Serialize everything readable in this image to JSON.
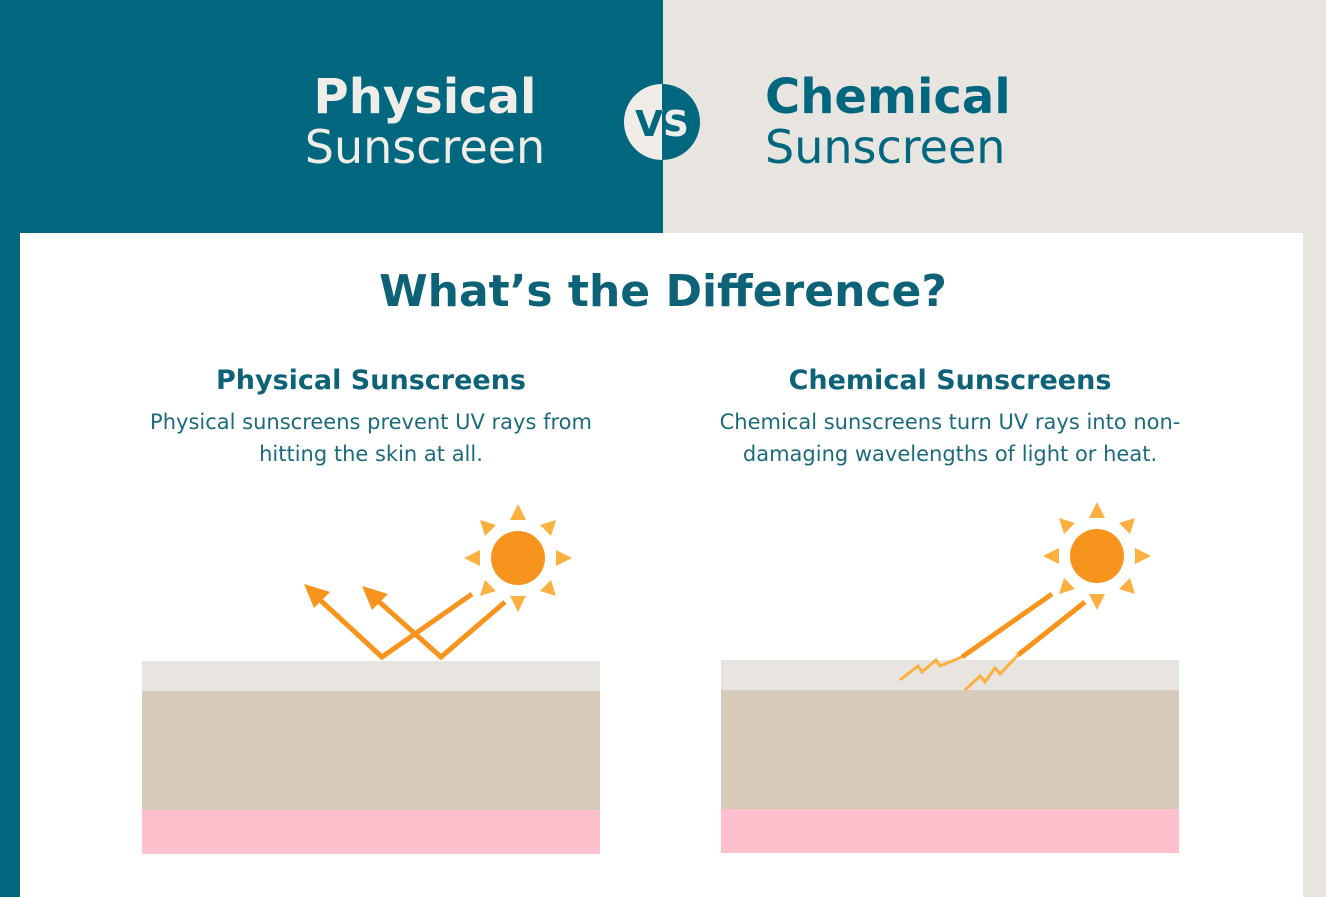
{
  "header": {
    "left": {
      "bold": "Physical",
      "light": "Sunscreen"
    },
    "vs": "VS",
    "right": {
      "bold": "Chemical",
      "light": "Sunscreen"
    }
  },
  "main_title": "What’s the Difference?",
  "sections": [
    {
      "title": "Physical Sunscreens",
      "description": "Physical sunscreens prevent UV rays from hitting the skin at all.",
      "illustration": "sun-rays-reflected-off-skin"
    },
    {
      "title": "Chemical Sunscreens",
      "description": "Chemical sunscreens turn UV rays into non-damaging wavelengths of light or heat.",
      "illustration": "sun-rays-absorbed-into-skin"
    }
  ],
  "colors": {
    "teal": "#00677f",
    "beige": "#e8e5e0",
    "sun": "#f7941d",
    "sun_rays": "#fbb040",
    "skin_top": "#e8e4df",
    "skin_mid": "#d6cbbb",
    "skin_bottom": "#fdc0cc"
  }
}
